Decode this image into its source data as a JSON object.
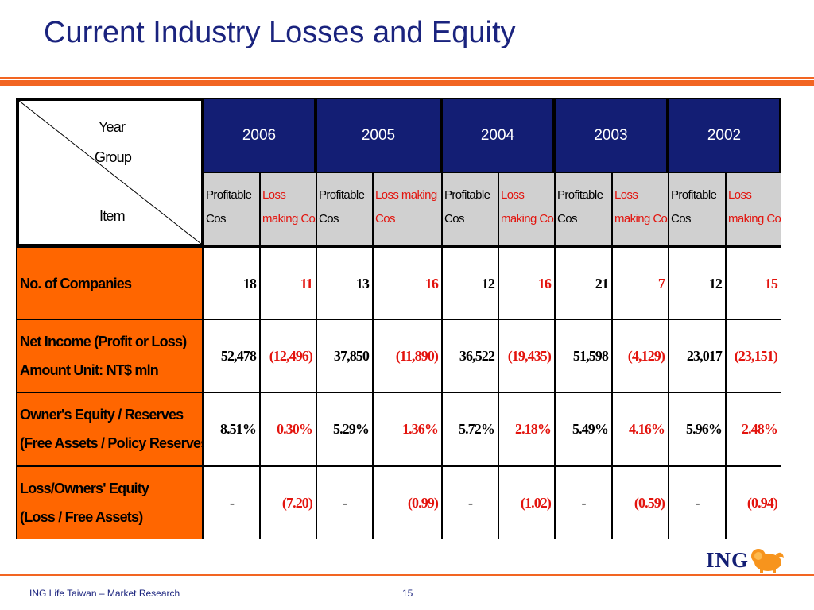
{
  "slide": {
    "title": "Current Industry Losses and Equity",
    "footer_left": "ING Life Taiwan – Market Research",
    "page_number": "15",
    "logo_text": "ING"
  },
  "table": {
    "corner": {
      "top": "Year",
      "middle": "Group",
      "bottom": "Item"
    },
    "years": [
      "2006",
      "2005",
      "2004",
      "2003",
      "2002"
    ],
    "sub_headers": [
      {
        "lines": [
          "Profitable",
          "Cos"
        ],
        "loss": false
      },
      {
        "lines": [
          "Loss",
          "making Cos"
        ],
        "loss": true
      },
      {
        "lines": [
          "Profitable",
          "Cos"
        ],
        "loss": false
      },
      {
        "lines": [
          "Loss making",
          "Cos"
        ],
        "loss": true
      },
      {
        "lines": [
          "Profitable",
          "Cos"
        ],
        "loss": false
      },
      {
        "lines": [
          "Loss",
          "making Cos"
        ],
        "loss": true
      },
      {
        "lines": [
          "Profitable",
          "Cos"
        ],
        "loss": false
      },
      {
        "lines": [
          "Loss",
          "making Cos"
        ],
        "loss": true
      },
      {
        "lines": [
          "Profitable",
          "Cos"
        ],
        "loss": false
      },
      {
        "lines": [
          "Loss",
          "making Cos"
        ],
        "loss": true
      }
    ],
    "rows": [
      {
        "label": [
          "No. of Companies"
        ],
        "values": [
          "18",
          "11",
          "13",
          "16",
          "12",
          "16",
          "21",
          "7",
          "12",
          "15"
        ]
      },
      {
        "label": [
          "Net Income (Profit or Loss)",
          "Amount Unit: NT$ mln"
        ],
        "values": [
          "52,478",
          "(12,496)",
          "37,850",
          "(11,890)",
          "36,522",
          "(19,435)",
          "51,598",
          "(4,129)",
          "23,017",
          "(23,151)"
        ]
      },
      {
        "label": [
          "Owner's Equity / Reserves",
          "(Free Assets / Policy Reserves)"
        ],
        "values": [
          "8.51%",
          "0.30%",
          "5.29%",
          "1.36%",
          "5.72%",
          "2.18%",
          "5.49%",
          "4.16%",
          "5.96%",
          "2.48%"
        ]
      },
      {
        "label": [
          "Loss/Owners' Equity",
          "(Loss / Free Assets)"
        ],
        "values": [
          "-",
          "(7.20)",
          "-",
          "(0.99)",
          "-",
          "(1.02)",
          "-",
          "(0.59)",
          "-",
          "(0.94)"
        ]
      }
    ]
  },
  "colors": {
    "title": "#1a237e",
    "year_header_bg": "#131e74",
    "row_header_bg": "#ff6600",
    "loss_text": "#e3140e",
    "accent_rule": "#f26522"
  }
}
